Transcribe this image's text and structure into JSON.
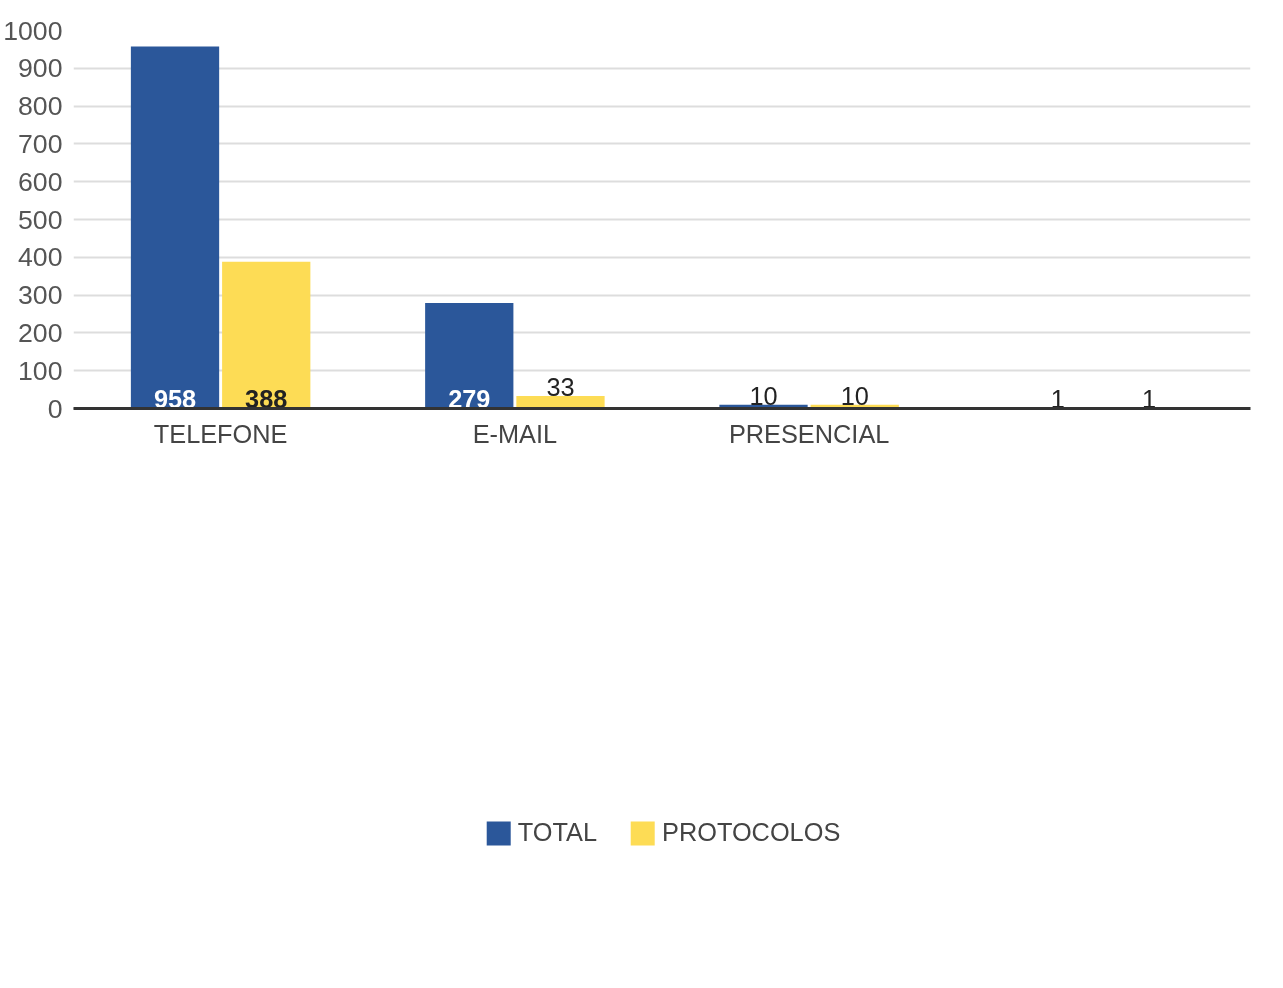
{
  "chart_data": {
    "type": "bar",
    "categories": [
      "TELEFONE",
      "E-MAIL",
      "PRESENCIAL",
      null
    ],
    "series": [
      {
        "name": "TOTAL",
        "color": "#2b579a",
        "values": [
          958,
          279,
          10,
          1
        ]
      },
      {
        "name": "PROTOCOLOS",
        "color": "#fddc55",
        "values": [
          388,
          33,
          10,
          1
        ]
      }
    ],
    "ylim": [
      0,
      1000
    ],
    "yticks": [
      0,
      100,
      200,
      300,
      400,
      500,
      600,
      700,
      800,
      900,
      1000
    ],
    "grid": "y",
    "legend": "bottom",
    "data_labels": true
  }
}
